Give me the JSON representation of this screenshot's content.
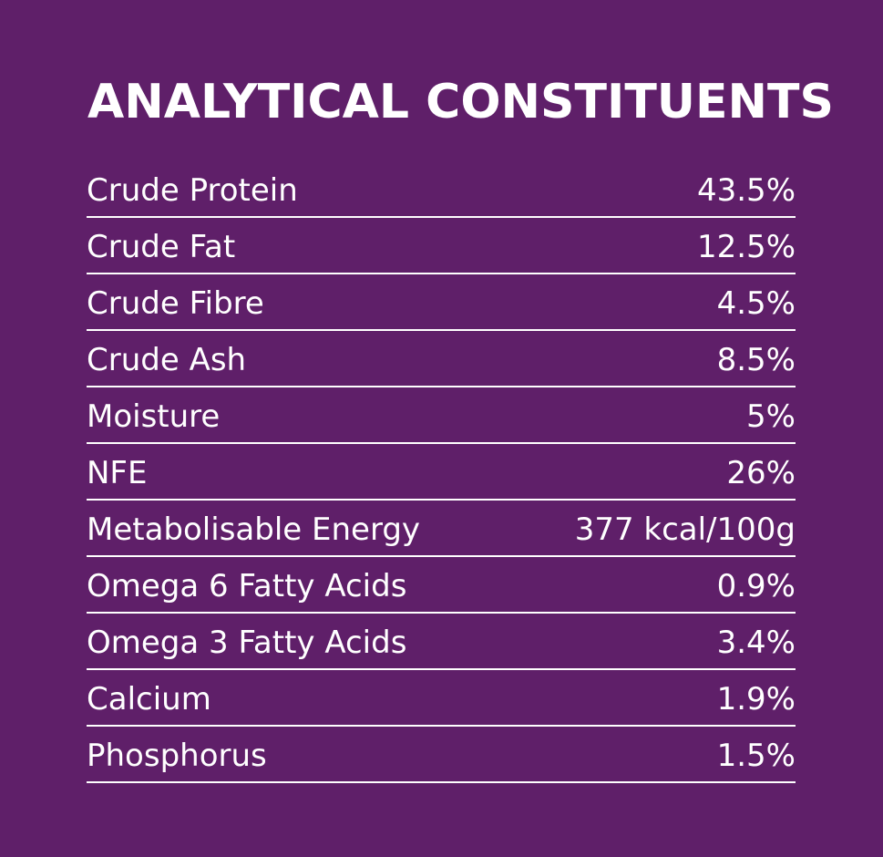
{
  "title": "ANALYTICAL CONSTITUENTS",
  "colors": {
    "background": "#5f1f69",
    "text": "#ffffff"
  },
  "rows": [
    {
      "label": "Crude Protein",
      "value": "43.5%"
    },
    {
      "label": "Crude Fat",
      "value": "12.5%"
    },
    {
      "label": "Crude Fibre",
      "value": "4.5%"
    },
    {
      "label": "Crude Ash",
      "value": "8.5%"
    },
    {
      "label": "Moisture",
      "value": "5%"
    },
    {
      "label": "NFE",
      "value": "26%"
    },
    {
      "label": "Metabolisable Energy",
      "value": "377 kcal/100g"
    },
    {
      "label": "Omega 6 Fatty Acids",
      "value": "0.9%"
    },
    {
      "label": "Omega 3 Fatty Acids",
      "value": "3.4%"
    },
    {
      "label": "Calcium",
      "value": "1.9%"
    },
    {
      "label": "Phosphorus",
      "value": "1.5%"
    }
  ]
}
